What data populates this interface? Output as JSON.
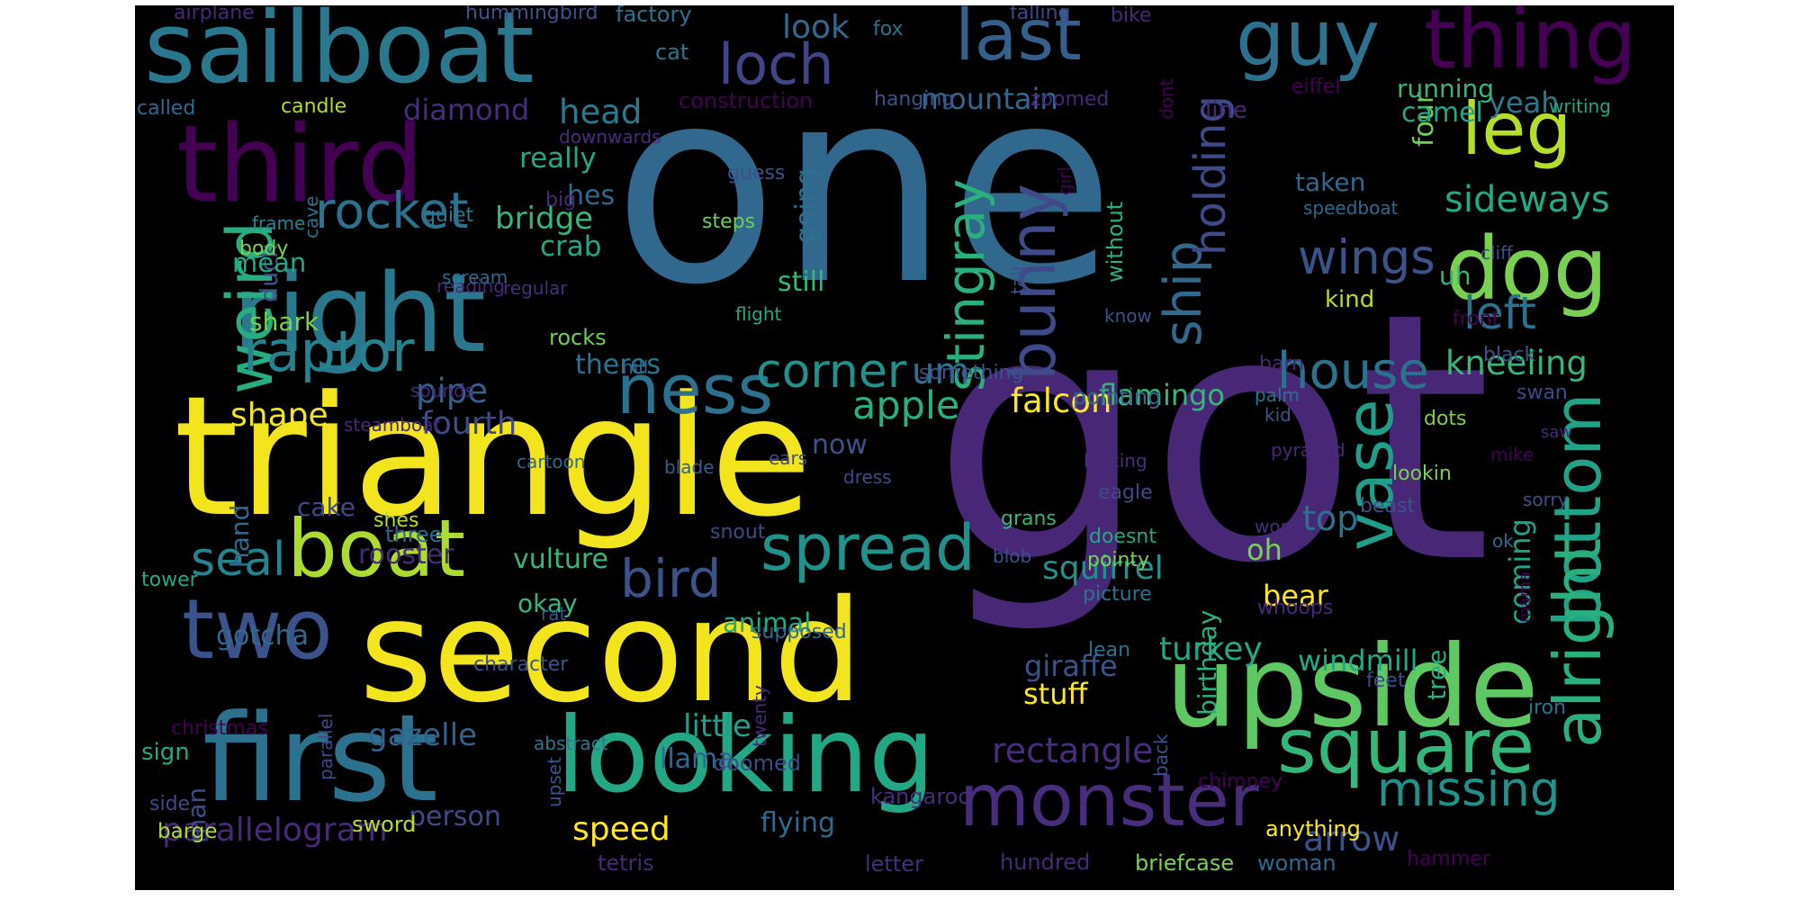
{
  "wordcloud": {
    "words": [
      {
        "text": "one",
        "color": "#31688e"
      },
      {
        "text": "got",
        "color": "#482777"
      },
      {
        "text": "triangle",
        "color": "#f2e51d"
      },
      {
        "text": "second",
        "color": "#f2e51d"
      },
      {
        "text": "upside",
        "color": "#5ec962"
      },
      {
        "text": "first",
        "color": "#2c728e"
      },
      {
        "text": "looking",
        "color": "#22a884"
      },
      {
        "text": "sailboat",
        "color": "#2a788e"
      },
      {
        "text": "third",
        "color": "#440154"
      },
      {
        "text": "right",
        "color": "#2a788e"
      },
      {
        "text": "boat",
        "color": "#addc30"
      },
      {
        "text": "two",
        "color": "#3b528b"
      },
      {
        "text": "monster",
        "color": "#472d7b"
      },
      {
        "text": "square",
        "color": "#35b779"
      },
      {
        "text": "last",
        "color": "#355f8d"
      },
      {
        "text": "thing",
        "color": "#440154"
      },
      {
        "text": "loch",
        "color": "#414487"
      },
      {
        "text": "guy",
        "color": "#2c728e"
      },
      {
        "text": "dog",
        "color": "#7ad151"
      },
      {
        "text": "leg",
        "color": "#b5de2b"
      },
      {
        "text": "ness",
        "color": "#2c728e"
      },
      {
        "text": "vase",
        "color": "#1f9e89"
      },
      {
        "text": "bottom",
        "color": "#20a386"
      },
      {
        "text": "alright",
        "color": "#2ab07f"
      },
      {
        "text": "weird",
        "color": "#26ad81"
      },
      {
        "text": "bunny",
        "color": "#3e4a89"
      },
      {
        "text": "spread",
        "color": "#21918c"
      },
      {
        "text": "stingray",
        "color": "#2ab07f"
      },
      {
        "text": "raptor",
        "color": "#26828e"
      },
      {
        "text": "rocket",
        "color": "#2c728e"
      },
      {
        "text": "house",
        "color": "#2c728e"
      },
      {
        "text": "wings",
        "color": "#3b528b"
      },
      {
        "text": "seal",
        "color": "#26828e"
      },
      {
        "text": "bird",
        "color": "#3b528b"
      },
      {
        "text": "corner",
        "color": "#21918c"
      },
      {
        "text": "missing",
        "color": "#21918c"
      },
      {
        "text": "ship",
        "color": "#31688e"
      },
      {
        "text": "left",
        "color": "#2c728e"
      },
      {
        "text": "holding",
        "color": "#3e4a89"
      },
      {
        "text": "sideways",
        "color": "#22a884"
      },
      {
        "text": "kneeling",
        "color": "#35b779"
      },
      {
        "text": "um",
        "color": "#2c728e"
      },
      {
        "text": "apple",
        "color": "#2ab07f"
      },
      {
        "text": "falcon",
        "color": "#fde725"
      },
      {
        "text": "arrow",
        "color": "#3b528b"
      },
      {
        "text": "rectangle",
        "color": "#472d7b"
      },
      {
        "text": "parallelogram",
        "color": "#482878"
      },
      {
        "text": "shape",
        "color": "#f2e51d"
      },
      {
        "text": "pipe",
        "color": "#355f8d"
      },
      {
        "text": "fourth",
        "color": "#3e4a89"
      },
      {
        "text": "coming",
        "color": "#20a386"
      },
      {
        "text": "top",
        "color": "#2c728e"
      },
      {
        "text": "squirrel",
        "color": "#21918c"
      },
      {
        "text": "gazelle",
        "color": "#355f8d"
      },
      {
        "text": "little",
        "color": "#1f9e89"
      },
      {
        "text": "speed",
        "color": "#fde725"
      },
      {
        "text": "flamingo",
        "color": "#35b779"
      },
      {
        "text": "turkey",
        "color": "#22a884"
      },
      {
        "text": "windmill",
        "color": "#22a884"
      },
      {
        "text": "giraffe",
        "color": "#3b528b"
      },
      {
        "text": "stuff",
        "color": "#fde725"
      },
      {
        "text": "bridge",
        "color": "#35b779"
      },
      {
        "text": "head",
        "color": "#2a788e"
      },
      {
        "text": "look",
        "color": "#31688e"
      },
      {
        "text": "diamond",
        "color": "#472d7b"
      },
      {
        "text": "mountain",
        "color": "#31688e"
      },
      {
        "text": "really",
        "color": "#22a884"
      },
      {
        "text": "hes",
        "color": "#31688e"
      },
      {
        "text": "crab",
        "color": "#22a884"
      },
      {
        "text": "duck",
        "color": "#3b528b"
      },
      {
        "text": "mean",
        "color": "#22a884"
      },
      {
        "text": "shark",
        "color": "#7ad151"
      },
      {
        "text": "going",
        "color": "#2c728e"
      },
      {
        "text": "still",
        "color": "#35b779"
      },
      {
        "text": "theres",
        "color": "#2c728e"
      },
      {
        "text": "cake",
        "color": "#3e4a89"
      },
      {
        "text": "hand",
        "color": "#31688e"
      },
      {
        "text": "rooster",
        "color": "#482878"
      },
      {
        "text": "vulture",
        "color": "#35b779"
      },
      {
        "text": "okay",
        "color": "#35b779"
      },
      {
        "text": "gotcha",
        "color": "#31688e"
      },
      {
        "text": "animal",
        "color": "#22a884"
      },
      {
        "text": "oh",
        "color": "#7ad151"
      },
      {
        "text": "bear",
        "color": "#fde725"
      },
      {
        "text": "now",
        "color": "#3b528b"
      },
      {
        "text": "uh",
        "color": "#35b779"
      },
      {
        "text": "kind",
        "color": "#b5de2b"
      },
      {
        "text": "taken",
        "color": "#31688e"
      },
      {
        "text": "four",
        "color": "#6ece58"
      },
      {
        "text": "camel",
        "color": "#22a884"
      },
      {
        "text": "yeah",
        "color": "#2a788e"
      },
      {
        "text": "running",
        "color": "#35b779"
      },
      {
        "text": "line",
        "color": "#482878"
      },
      {
        "text": "birthday",
        "color": "#2ab07f"
      },
      {
        "text": "tree",
        "color": "#2ab07f"
      },
      {
        "text": "man",
        "color": "#3e4a89"
      },
      {
        "text": "sign",
        "color": "#22a884"
      },
      {
        "text": "llama",
        "color": "#31688e"
      },
      {
        "text": "person",
        "color": "#3e4a89"
      },
      {
        "text": "flying",
        "color": "#31688e"
      },
      {
        "text": "tetris",
        "color": "#482878"
      },
      {
        "text": "hundred",
        "color": "#482878"
      },
      {
        "text": "briefcase",
        "color": "#7ad151"
      },
      {
        "text": "woman",
        "color": "#31688e"
      },
      {
        "text": "hammer",
        "color": "#440154"
      },
      {
        "text": "anything",
        "color": "#fde725"
      },
      {
        "text": "letter",
        "color": "#472d7b"
      },
      {
        "text": "sword",
        "color": "#b5de2b"
      },
      {
        "text": "barge",
        "color": "#addc30"
      },
      {
        "text": "side",
        "color": "#3e4a89"
      },
      {
        "text": "christmas",
        "color": "#440154"
      },
      {
        "text": "parallel",
        "color": "#3e4a89"
      },
      {
        "text": "abstract",
        "color": "#2a788e"
      },
      {
        "text": "upset",
        "color": "#3b528b"
      },
      {
        "text": "doomed",
        "color": "#3e4a89"
      },
      {
        "text": "kangaroo",
        "color": "#472d7b"
      },
      {
        "text": "twenty",
        "color": "#482878"
      },
      {
        "text": "back",
        "color": "#3b528b"
      },
      {
        "text": "chimney",
        "color": "#440154"
      },
      {
        "text": "airplane",
        "color": "#482878"
      },
      {
        "text": "hummingbird",
        "color": "#3b528b"
      },
      {
        "text": "factory",
        "color": "#2c728e"
      },
      {
        "text": "fox",
        "color": "#2c728e"
      },
      {
        "text": "falling",
        "color": "#3e4a89"
      },
      {
        "text": "bike",
        "color": "#482878"
      },
      {
        "text": "cat",
        "color": "#2a788e"
      },
      {
        "text": "called",
        "color": "#31688e"
      },
      {
        "text": "candle",
        "color": "#addc30"
      },
      {
        "text": "construction",
        "color": "#440154"
      },
      {
        "text": "hanging",
        "color": "#3b528b"
      },
      {
        "text": "zoomed",
        "color": "#482878"
      },
      {
        "text": "dont",
        "color": "#440154"
      },
      {
        "text": "eiffel",
        "color": "#440154"
      },
      {
        "text": "writing",
        "color": "#22a884"
      },
      {
        "text": "downwards",
        "color": "#472d7b"
      },
      {
        "text": "guess",
        "color": "#3b528b"
      },
      {
        "text": "steps",
        "color": "#6ece58"
      },
      {
        "text": "quiet",
        "color": "#2a788e"
      },
      {
        "text": "big",
        "color": "#482878"
      },
      {
        "text": "cave",
        "color": "#2c728e"
      },
      {
        "text": "girl",
        "color": "#440154"
      },
      {
        "text": "without",
        "color": "#2ab07f"
      },
      {
        "text": "speedboat",
        "color": "#31688e"
      },
      {
        "text": "frame",
        "color": "#26828e"
      },
      {
        "text": "body",
        "color": "#7ad151"
      },
      {
        "text": "tail",
        "color": "#3b528b"
      },
      {
        "text": "cliff",
        "color": "#3e4a89"
      },
      {
        "text": "reading",
        "color": "#482878"
      },
      {
        "text": "scream",
        "color": "#31688e"
      },
      {
        "text": "regular",
        "color": "#472d7b"
      },
      {
        "text": "flight",
        "color": "#22a884"
      },
      {
        "text": "know",
        "color": "#3b528b"
      },
      {
        "text": "front",
        "color": "#440154"
      },
      {
        "text": "rocks",
        "color": "#6ece58"
      },
      {
        "text": "black",
        "color": "#3b528b"
      },
      {
        "text": "hill",
        "color": "#31688e"
      },
      {
        "text": "something",
        "color": "#3b528b"
      },
      {
        "text": "barn",
        "color": "#482878"
      },
      {
        "text": "swan",
        "color": "#3e4a89"
      },
      {
        "text": "sounds",
        "color": "#482878"
      },
      {
        "text": "pointing",
        "color": "#31688e"
      },
      {
        "text": "palm",
        "color": "#2c728e"
      },
      {
        "text": "kid",
        "color": "#3b528b"
      },
      {
        "text": "steamboat",
        "color": "#482878"
      },
      {
        "text": "cartoon",
        "color": "#31688e"
      },
      {
        "text": "blade",
        "color": "#355f8d"
      },
      {
        "text": "ears",
        "color": "#3e4a89"
      },
      {
        "text": "kicking",
        "color": "#472d7b"
      },
      {
        "text": "pyramid",
        "color": "#482878"
      },
      {
        "text": "dots",
        "color": "#7ad151"
      },
      {
        "text": "mike",
        "color": "#440154"
      },
      {
        "text": "saw",
        "color": "#482878"
      },
      {
        "text": "dress",
        "color": "#3e4a89"
      },
      {
        "text": "lookin",
        "color": "#7ad151"
      },
      {
        "text": "eagle",
        "color": "#3e4a89"
      },
      {
        "text": "beast",
        "color": "#3b528b"
      },
      {
        "text": "sorry",
        "color": "#3b528b"
      },
      {
        "text": "shes",
        "color": "#b5de2b"
      },
      {
        "text": "three",
        "color": "#31688e"
      },
      {
        "text": "tower",
        "color": "#22a884"
      },
      {
        "text": "snout",
        "color": "#3e4a89"
      },
      {
        "text": "grans",
        "color": "#35b779"
      },
      {
        "text": "blob",
        "color": "#3b528b"
      },
      {
        "text": "doesnt",
        "color": "#22a884"
      },
      {
        "text": "pointy",
        "color": "#7ad151"
      },
      {
        "text": "word",
        "color": "#472d7b"
      },
      {
        "text": "ok",
        "color": "#31688e"
      },
      {
        "text": "rat",
        "color": "#3b528b"
      },
      {
        "text": "picture",
        "color": "#2c728e"
      },
      {
        "text": "whoops",
        "color": "#482878"
      },
      {
        "text": "mama",
        "color": "#440154"
      },
      {
        "text": "supposed",
        "color": "#31688e"
      },
      {
        "text": "character",
        "color": "#3b528b"
      },
      {
        "text": "lean",
        "color": "#2c728e"
      },
      {
        "text": "feet",
        "color": "#3e4a89"
      },
      {
        "text": "iron",
        "color": "#2c728e"
      }
    ]
  }
}
